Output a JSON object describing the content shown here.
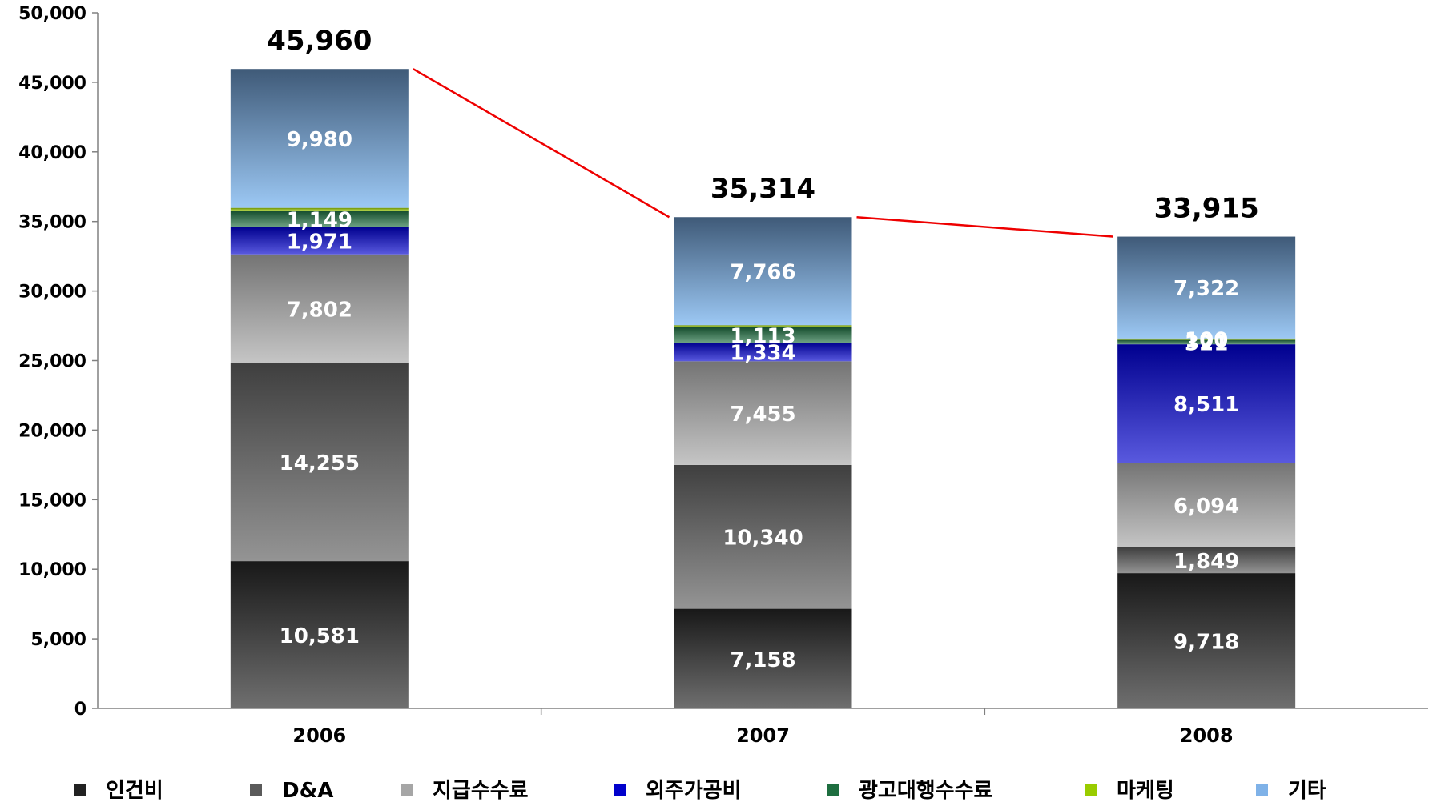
{
  "chart_data": {
    "type": "bar",
    "stacked": true,
    "categories": [
      "2006",
      "2007",
      "2008"
    ],
    "ylim": [
      0,
      50000
    ],
    "yticks": [
      "0",
      "5,000",
      "10,000",
      "15,000",
      "20,000",
      "25,000",
      "30,000",
      "35,000",
      "40,000",
      "45,000",
      "50,000"
    ],
    "grid": false,
    "legend_position": "bottom",
    "series": [
      {
        "name": "인건비",
        "color": "#222222",
        "values": [
          10581,
          7158,
          9718
        ],
        "labels": [
          "10,581",
          "7,158",
          "9,718"
        ]
      },
      {
        "name": "D&A",
        "color": "#5a5a5a",
        "values": [
          14255,
          10340,
          1849
        ],
        "labels": [
          "14,255",
          "10,340",
          "1,849"
        ]
      },
      {
        "name": "지급수수료",
        "color": "#a6a6a6",
        "values": [
          7802,
          7455,
          6094
        ],
        "labels": [
          "7,802",
          "7,455",
          "6,094"
        ]
      },
      {
        "name": "외주가공비",
        "color": "#0000cc",
        "values": [
          1971,
          1334,
          8511
        ],
        "labels": [
          "1,971",
          "1,334",
          "8,511"
        ]
      },
      {
        "name": "광고대행수수료",
        "color": "#1e6e40",
        "values": [
          1149,
          1113,
          321
        ],
        "labels": [
          "1,149",
          "1,113",
          "321"
        ]
      },
      {
        "name": "마케팅",
        "color": "#99cc00",
        "values": [
          222,
          148,
          100
        ],
        "labels": [
          "",
          "",
          "100"
        ]
      },
      {
        "name": "기타",
        "color": "#7fb2e8",
        "values": [
          9980,
          7766,
          7322
        ],
        "labels": [
          "9,980",
          "7,766",
          "7,322"
        ]
      }
    ],
    "totals": [
      45960,
      35314,
      33915
    ],
    "total_labels": [
      "45,960",
      "35,314",
      "33,915"
    ],
    "trend_line_color": "#ee0000"
  }
}
